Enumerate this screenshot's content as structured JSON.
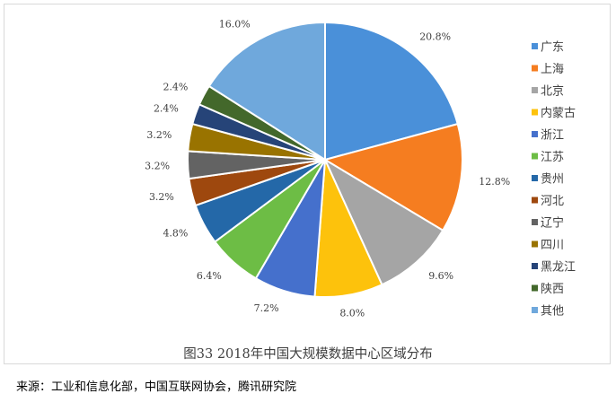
{
  "chart_data": {
    "type": "pie",
    "categories": [
      "广东",
      "上海",
      "北京",
      "内蒙古",
      "浙江",
      "江苏",
      "贵州",
      "河北",
      "辽宁",
      "四川",
      "黑龙江",
      "陕西",
      "其他"
    ],
    "values": [
      20.8,
      12.8,
      9.6,
      8.0,
      7.2,
      6.4,
      4.8,
      3.2,
      3.2,
      3.2,
      2.4,
      2.4,
      16.0
    ],
    "labels": [
      "20.8%",
      "12.8%",
      "9.6%",
      "8.0%",
      "7.2%",
      "6.4%",
      "4.8%",
      "3.2%",
      "3.2%",
      "3.2%",
      "2.4%",
      "2.4%",
      "16.0%"
    ],
    "colors": [
      "#4a90d9",
      "#f57d20",
      "#a5a5a5",
      "#fdc20c",
      "#4570cc",
      "#6dbd45",
      "#2468a8",
      "#9e480e",
      "#636363",
      "#997300",
      "#264478",
      "#43682b",
      "#6fa8dc"
    ],
    "title": "图33   2018年中国大规模数据中心区域分布",
    "legend_position": "right"
  },
  "source_note": "来源：工业和信息化部，中国互联网协会，腾讯研究院"
}
